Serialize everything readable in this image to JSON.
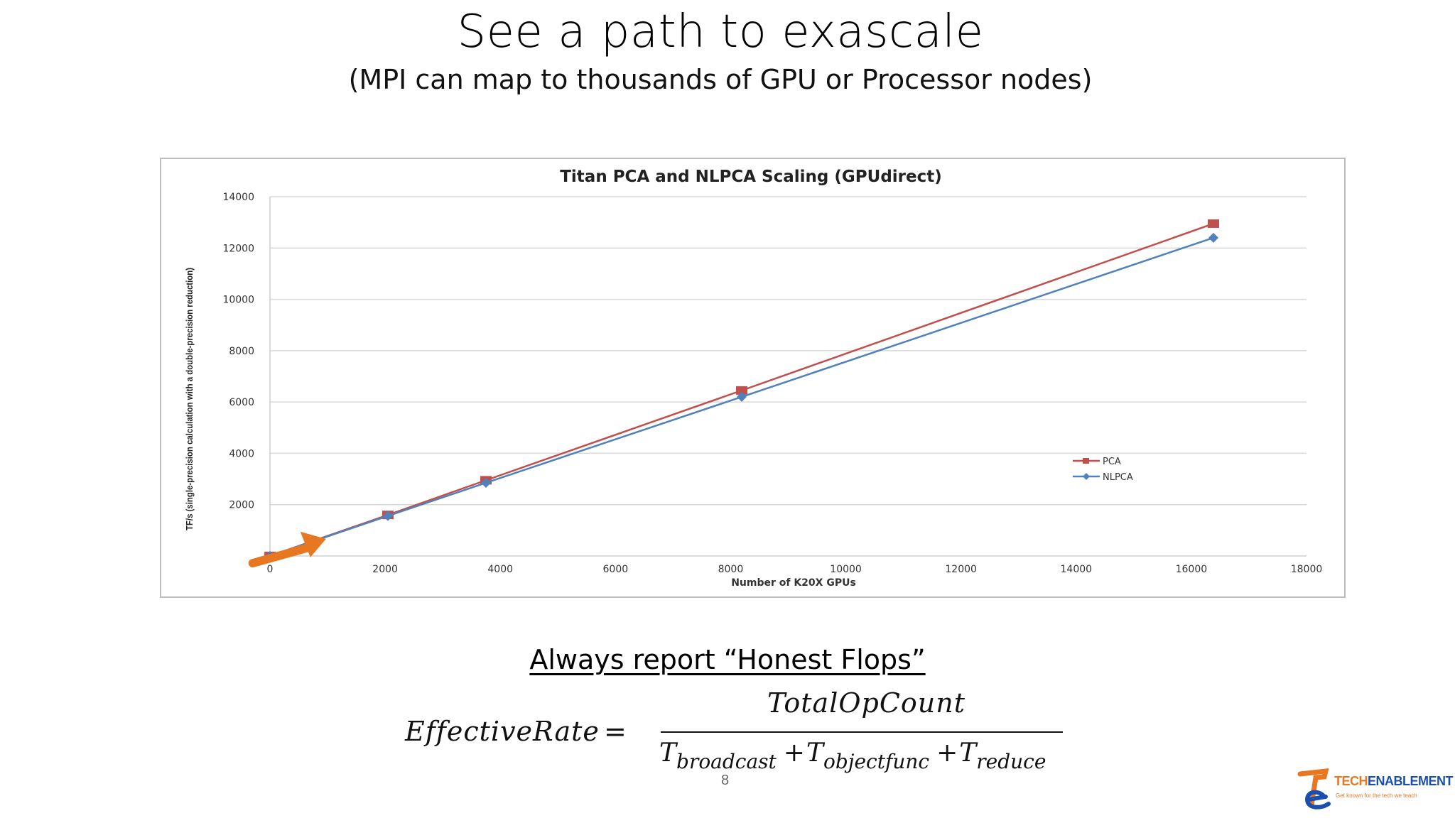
{
  "slide": {
    "title": "See a path to exascale",
    "subtitle": "(MPI can map to thousands of GPU or Processor nodes)",
    "tagline": "Always report “Honest Flops”",
    "page_number": "8"
  },
  "formula": {
    "lhs": "EffectiveRate",
    "equals": "=",
    "numerator": "TotalOpCount",
    "t": "T",
    "plus": "+",
    "sub_broadcast": "broadcast",
    "sub_objectfunc": "objectfunc",
    "sub_reduce": "reduce"
  },
  "logo": {
    "brand_tech": "TECH",
    "brand_enablement": "ENABLEMENT",
    "tagline": "Get known for the tech we teach"
  },
  "chart_data": {
    "type": "line",
    "title": "Titan PCA and NLPCA Scaling (GPUdirect)",
    "xlabel": "Number of K20X GPUs",
    "ylabel": "TF/s (single-precision calculation with a double-precision reduction)",
    "xlim": [
      0,
      18000
    ],
    "ylim": [
      0,
      14000
    ],
    "xticks": [
      0,
      2000,
      4000,
      6000,
      8000,
      10000,
      12000,
      14000,
      16000,
      18000
    ],
    "yticks": [
      2000,
      4000,
      6000,
      8000,
      10000,
      12000,
      14000
    ],
    "grid": true,
    "legend_position": "right",
    "series": [
      {
        "name": "PCA",
        "color": "#c0504d",
        "marker": "square",
        "x": [
          1,
          2048,
          3750,
          8192,
          16384
        ],
        "y": [
          3,
          1600,
          2950,
          6450,
          12950
        ]
      },
      {
        "name": "NLPCA",
        "color": "#4f81bd",
        "marker": "diamond",
        "x": [
          1,
          2048,
          3750,
          8192,
          16384
        ],
        "y": [
          3,
          1560,
          2850,
          6200,
          12400
        ]
      }
    ],
    "annotation": {
      "type": "arrow",
      "color": "#e87722"
    }
  }
}
